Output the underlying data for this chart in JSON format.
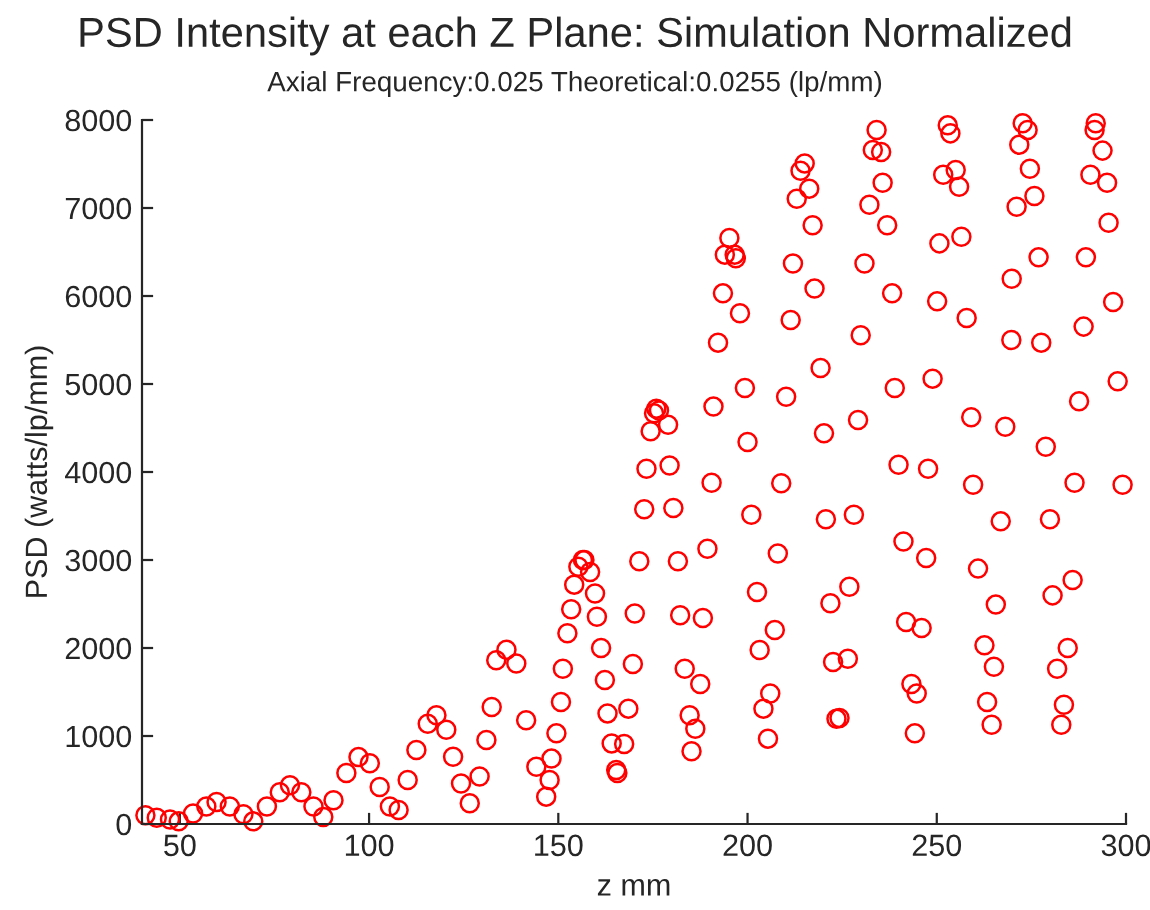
{
  "chart_data": {
    "type": "scatter",
    "title": "PSD Intensity at each Z Plane: Simulation Normalized",
    "subtitle": "Axial Frequency:0.025 Theoretical:0.0255 (lp/mm)",
    "xlabel": "z mm",
    "ylabel": "PSD (watts/lp/mm)",
    "xlim": [
      40,
      300
    ],
    "ylim": [
      0,
      8000
    ],
    "xticks": [
      50,
      100,
      150,
      200,
      250,
      300
    ],
    "yticks": [
      0,
      1000,
      2000,
      3000,
      4000,
      5000,
      6000,
      7000,
      8000
    ],
    "grid": false,
    "marker": "circle",
    "series": [
      {
        "color": "#ff0000",
        "x": [
          40.9,
          43.9,
          47.4,
          49.7,
          53.5,
          57,
          59.7,
          63.2,
          66.8,
          69.4,
          73,
          76.4,
          79.1,
          82.1,
          85.3,
          87.9,
          90.6,
          94,
          97.2,
          100.2,
          102.8,
          105.5,
          107.8,
          110.2,
          112.5,
          115.5,
          117.8,
          120.4,
          122.2,
          124.3,
          126.6,
          129.2,
          131,
          132.4,
          133.6,
          136.3,
          138.9,
          141.5,
          144.2,
          146.8,
          147.7,
          148.2,
          149.5,
          150.7,
          151.2,
          152.4,
          153.4,
          154.2,
          155.3,
          156.5,
          156.9,
          158.4,
          159.7,
          160.2,
          161.3,
          162.3,
          163,
          164.1,
          165.3,
          165.6,
          167.4,
          168.5,
          169.7,
          170.2,
          171.4,
          172.7,
          173.3,
          174.4,
          175.3,
          175.9,
          176.6,
          179,
          179.4,
          180.4,
          181.6,
          182.2,
          183.4,
          184.7,
          185.2,
          186.2,
          187.5,
          188.2,
          189.4,
          190.5,
          191,
          192.2,
          193.5,
          194,
          195.2,
          196.6,
          196.9,
          198,
          199.3,
          200,
          201,
          202.5,
          203.2,
          204.2,
          205.4,
          206,
          207.2,
          208,
          208.9,
          210.2,
          211.4,
          212,
          213,
          214,
          215.1,
          216.3,
          217.2,
          217.7,
          219.3,
          220.2,
          220.7,
          221.9,
          222.6,
          223.5,
          224.3,
          226.5,
          226.9,
          228.1,
          229.2,
          229.9,
          230.9,
          232.2,
          233.1,
          234.1,
          235.3,
          235.7,
          236.9,
          238.2,
          238.9,
          239.9,
          241.2,
          241.9,
          243.3,
          244.2,
          244.7,
          246,
          247.2,
          247.7,
          248.9,
          250.1,
          250.7,
          251.7,
          252.9,
          253.6,
          255,
          255.9,
          256.5,
          257.9,
          259.1,
          259.6,
          260.9,
          262.6,
          263.3,
          264.5,
          265.1,
          265.6,
          266.9,
          268.1,
          269.7,
          269.8,
          271.1,
          271.8,
          272.7,
          274,
          274.6,
          275.8,
          276.9,
          277.6,
          278.8,
          279.9,
          280.6,
          281.8,
          282.9,
          283.6,
          284.6,
          285.9,
          286.4,
          287.6,
          288.8,
          289.4,
          290.6,
          291.7,
          292,
          293.8,
          295,
          295.4,
          296.6,
          297.8,
          299.1
        ],
        "values": [
          100,
          70,
          50,
          30,
          120,
          200,
          250,
          200,
          110,
          30,
          200,
          360,
          440,
          360,
          200,
          80,
          270,
          580,
          760,
          690,
          420,
          200,
          160,
          500,
          840,
          1140,
          1235,
          1070,
          765,
          460,
          235,
          540,
          955,
          1330,
          1860,
          1980,
          1825,
          1180,
          650,
          311,
          500,
          743,
          1030,
          1386,
          1765,
          2167,
          2440,
          2720,
          2924,
          3000,
          3000,
          2864,
          2620,
          2356,
          2000,
          1636,
          1257,
          916,
          614,
          580,
          909,
          1311,
          1818,
          2393,
          2985,
          3576,
          4038,
          4462,
          4667,
          4720,
          4700,
          4538,
          4075,
          3590,
          2985,
          2371,
          1765,
          1235,
          826,
          1083,
          1591,
          2340,
          3129,
          3879,
          4743,
          5470,
          6030,
          6470,
          6659,
          6470,
          6430,
          5803,
          4955,
          4341,
          3515,
          2636,
          1977,
          1311,
          970,
          1484,
          2205,
          3075,
          3871,
          4856,
          5727,
          6370,
          7106,
          7424,
          7507,
          7220,
          6803,
          6084,
          5182,
          4439,
          3462,
          2508,
          1841,
          1197,
          1205,
          1879,
          2697,
          3515,
          4591,
          5553,
          6370,
          7038,
          7659,
          7886,
          7636,
          7288,
          6803,
          6030,
          4955,
          4083,
          3211,
          2295,
          1591,
          1030,
          1484,
          2227,
          3023,
          4038,
          5061,
          5939,
          6598,
          7379,
          7939,
          7848,
          7432,
          7242,
          6674,
          5750,
          4621,
          3856,
          2902,
          2030,
          1386,
          1129,
          1788,
          2493,
          3439,
          4515,
          5500,
          6197,
          7015,
          7720,
          7962,
          7886,
          7447,
          7136,
          6439,
          5470,
          4288,
          3462,
          2598,
          1765,
          1129,
          1356,
          2000,
          2773,
          3879,
          4803,
          5652,
          6439,
          7379,
          7886,
          7962,
          7652,
          7288,
          6833,
          5932,
          5030,
          3856
        ]
      }
    ]
  }
}
